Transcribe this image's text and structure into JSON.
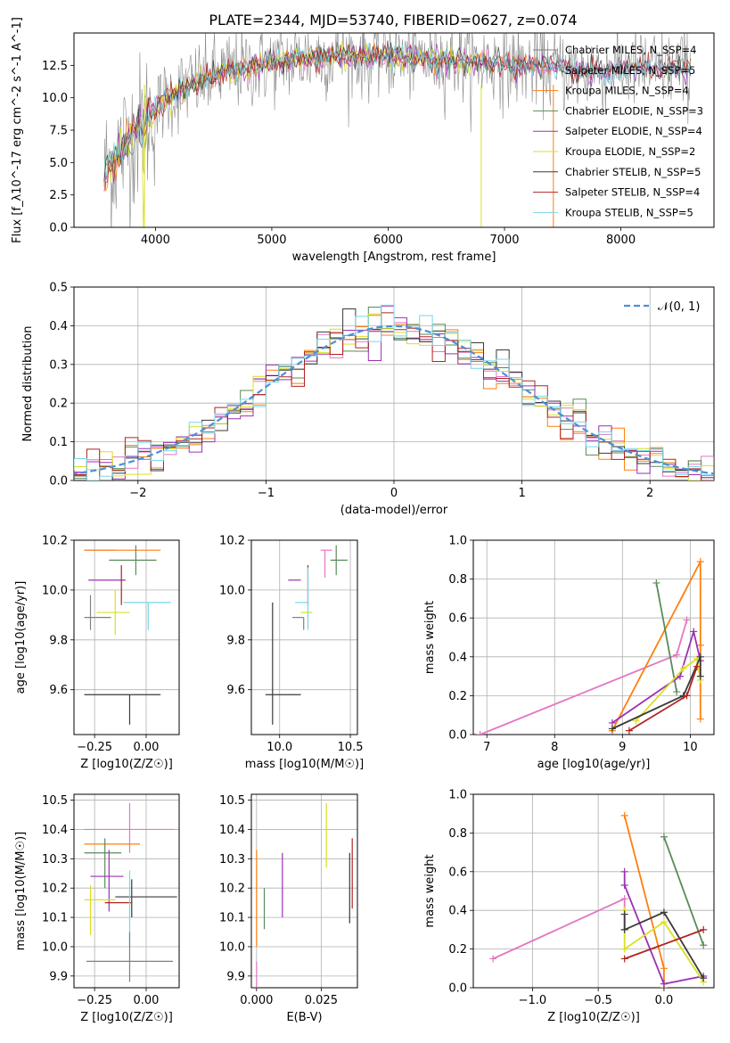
{
  "figure": {
    "title": "PLATE=2344, MJD=53740, FIBERID=0627, z=0.074"
  },
  "colors": {
    "series": [
      "#808080",
      "#e377c2",
      "#ff7f0e",
      "#5a8a5a",
      "#9b30b5",
      "#d9e021",
      "#3a3a3a",
      "#b22222",
      "#76d7ea"
    ]
  },
  "chart_data": [
    {
      "id": "spectrum",
      "type": "line",
      "xlabel": "wavelength [Angstrom, rest frame]",
      "ylabel": "Flux [f_λ10^-17 erg cm^-2 s^-1 A^-1]",
      "xlim": [
        3300,
        8800
      ],
      "ylim": [
        0,
        15
      ],
      "xticks": [
        4000,
        5000,
        6000,
        7000,
        8000
      ],
      "yticks": [
        0.0,
        2.5,
        5.0,
        7.5,
        10.0,
        12.5
      ],
      "legend_position": "right",
      "legend": [
        "Chabrier MILES, N_SSP=4",
        "Salpeter MILES, N_SSP=5",
        "Kroupa MILES, N_SSP=4",
        "Chabrier ELODIE, N_SSP=3",
        "Salpeter ELODIE, N_SSP=4",
        "Kroupa ELODIE, N_SSP=2",
        "Chabrier STELIB, N_SSP=5",
        "Salpeter STELIB, N_SSP=4",
        "Kroupa STELIB, N_SSP=5"
      ],
      "data_envelope": {
        "x": [
          3560,
          3700,
          3850,
          3950,
          4100,
          4300,
          4600,
          4900,
          5200,
          5600,
          6000,
          6400,
          6800,
          7200,
          7400,
          7700,
          8000,
          8300,
          8600
        ],
        "y": [
          4.0,
          6.0,
          7.5,
          8.5,
          10.0,
          11.0,
          12.0,
          12.5,
          13.0,
          13.3,
          13.2,
          13.0,
          12.7,
          12.5,
          12.3,
          12.0,
          12.2,
          12.3,
          12.2
        ]
      },
      "grid": false
    },
    {
      "id": "residuals",
      "type": "histogram",
      "xlabel": "(data-model)/error",
      "ylabel": "Normed distribution",
      "xlim": [
        -2.5,
        2.5
      ],
      "ylim": [
        0,
        0.5
      ],
      "xticks": [
        -2,
        -1,
        0,
        1,
        2
      ],
      "yticks": [
        0.0,
        0.1,
        0.2,
        0.3,
        0.4,
        0.5
      ],
      "legend": [
        "𝒩(0, 1)"
      ],
      "legend_position": "top-right",
      "grid": true,
      "bin_width": 0.1,
      "reference_curve": "normal(0,1)"
    },
    {
      "id": "age-vs-Z",
      "type": "errorbar",
      "xlabel": "Z [log10(Z/Z☉)]",
      "ylabel": "age  [log10(age/yr)]",
      "xlim": [
        -0.35,
        0.16
      ],
      "ylim": [
        9.42,
        10.2
      ],
      "xticks": [
        -0.25,
        0.0
      ],
      "yticks": [
        9.6,
        9.8,
        10.0,
        10.2
      ],
      "grid": true,
      "points": [
        {
          "x": -0.21,
          "y": 10.16,
          "xerr": [
            0.09,
            0.06
          ],
          "yerr": [
            0.0,
            0.0
          ]
        },
        {
          "x": -0.11,
          "y": 10.16,
          "xerr": [
            0.19,
            0.18
          ],
          "yerr": [
            0.0,
            0.0
          ]
        },
        {
          "x": -0.05,
          "y": 10.12,
          "xerr": [
            0.13,
            0.1
          ],
          "yerr": [
            0.06,
            0.06
          ]
        },
        {
          "x": -0.19,
          "y": 10.04,
          "xerr": [
            0.09,
            0.09
          ],
          "yerr": [
            0.0,
            0.0
          ]
        },
        {
          "x": -0.15,
          "y": 9.91,
          "xerr": [
            0.09,
            0.07
          ],
          "yerr": [
            0.09,
            0.09
          ]
        },
        {
          "x": -0.08,
          "y": 9.58,
          "xerr": [
            0.22,
            0.15
          ],
          "yerr": [
            0.12,
            0.0
          ]
        },
        {
          "x": -0.12,
          "y": 10.04,
          "xerr": [
            0.0,
            0.0
          ],
          "yerr": [
            0.1,
            0.06
          ]
        },
        {
          "x": 0.01,
          "y": 9.95,
          "xerr": [
            0.12,
            0.11
          ],
          "yerr": [
            0.11,
            0.0
          ]
        },
        {
          "x": -0.27,
          "y": 9.89,
          "xerr": [
            0.03,
            0.1
          ],
          "yerr": [
            0.05,
            0.09
          ]
        }
      ]
    },
    {
      "id": "age-vs-mass",
      "type": "errorbar",
      "xlabel": "mass [log10(M/M☉)]",
      "ylabel": "",
      "xlim": [
        9.8,
        10.55
      ],
      "ylim": [
        9.42,
        10.2
      ],
      "xticks": [
        10.0,
        10.5
      ],
      "yticks": [
        9.6,
        9.8,
        10.0,
        10.2
      ],
      "grid": true,
      "points": [
        {
          "x": 10.32,
          "y": 10.16,
          "yerr": [
            0.11,
            0.0
          ],
          "xerr": [
            0.03,
            0.05
          ]
        },
        {
          "x": 10.35,
          "y": 10.16,
          "yerr": [
            0.0,
            0.0
          ],
          "xerr": [
            0.0,
            0.0
          ]
        },
        {
          "x": 10.4,
          "y": 10.12,
          "xerr": [
            0.04,
            0.08
          ],
          "yerr": [
            0.06,
            0.06
          ]
        },
        {
          "x": 10.15,
          "y": 10.04,
          "xerr": [
            0.09,
            0.0
          ],
          "yerr": [
            0.0,
            0.0
          ]
        },
        {
          "x": 10.23,
          "y": 9.91,
          "xerr": [
            0.08,
            0.0
          ],
          "yerr": [
            0.0,
            0.0
          ]
        },
        {
          "x": 9.95,
          "y": 9.58,
          "xerr": [
            0.05,
            0.2
          ],
          "yerr": [
            0.12,
            0.37
          ]
        },
        {
          "x": 10.2,
          "y": 10.04,
          "yerr": [
            0.1,
            0.06
          ],
          "xerr": [
            0.0,
            0.0
          ]
        },
        {
          "x": 10.2,
          "y": 9.95,
          "xerr": [
            0.09,
            0.0
          ],
          "yerr": [
            0.11,
            0.14
          ]
        },
        {
          "x": 10.17,
          "y": 9.89,
          "xerr": [
            0.08,
            0.0
          ],
          "yerr": [
            0.05,
            0.0
          ]
        }
      ]
    },
    {
      "id": "weight-vs-age",
      "type": "line",
      "xlabel": "age  [log10(age/yr)]",
      "ylabel": "mass weight",
      "xlim": [
        6.8,
        10.35
      ],
      "ylim": [
        0,
        1
      ],
      "xticks": [
        7,
        8,
        9,
        10
      ],
      "yticks": [
        0.0,
        0.2,
        0.4,
        0.6,
        0.8,
        1.0
      ],
      "grid": true,
      "series": [
        {
          "x": [
            6.9,
            9.8,
            9.95
          ],
          "y": [
            0.0,
            0.41,
            0.59
          ]
        },
        {
          "x": [
            8.85,
            10.15,
            10.15,
            10.15
          ],
          "y": [
            0.02,
            0.89,
            0.46,
            0.08
          ]
        },
        {
          "x": [
            9.5,
            9.8
          ],
          "y": [
            0.78,
            0.22
          ]
        },
        {
          "x": [
            8.85,
            9.85,
            10.05,
            10.15
          ],
          "y": [
            0.06,
            0.3,
            0.53,
            0.38
          ]
        },
        {
          "x": [
            9.2,
            9.9,
            10.1,
            10.15
          ],
          "y": [
            0.07,
            0.34,
            0.39,
            0.28
          ]
        },
        {
          "x": [
            8.85,
            9.9,
            10.15,
            10.15
          ],
          "y": [
            0.03,
            0.2,
            0.4,
            0.3
          ]
        },
        {
          "x": [
            9.1,
            9.95,
            10.1
          ],
          "y": [
            0.02,
            0.2,
            0.35
          ]
        }
      ]
    },
    {
      "id": "mass-vs-Z",
      "type": "errorbar",
      "xlabel": "Z [log10(Z/Z☉)]",
      "ylabel": "mass [log10(M/M☉)]",
      "xlim": [
        -0.35,
        0.16
      ],
      "ylim": [
        9.86,
        10.52
      ],
      "xticks": [
        -0.25,
        0.0
      ],
      "yticks": [
        9.9,
        10.0,
        10.1,
        10.2,
        10.3,
        10.4,
        10.5
      ],
      "grid": true,
      "points": [
        {
          "x": -0.08,
          "y": 10.4,
          "xerr": [
            0.22,
            0.22
          ],
          "yerr": [
            0.08,
            0.09
          ]
        },
        {
          "x": -0.15,
          "y": 10.35,
          "xerr": [
            0.15,
            0.12
          ],
          "yerr": [
            0.0,
            0.0
          ]
        },
        {
          "x": -0.2,
          "y": 10.32,
          "xerr": [
            0.1,
            0.08
          ],
          "yerr": [
            0.12,
            0.05
          ]
        },
        {
          "x": -0.18,
          "y": 10.24,
          "xerr": [
            0.09,
            0.07
          ],
          "yerr": [
            0.12,
            0.09
          ]
        },
        {
          "x": -0.27,
          "y": 10.16,
          "xerr": [
            0.03,
            0.12
          ],
          "yerr": [
            0.12,
            0.05
          ]
        },
        {
          "x": -0.07,
          "y": 10.17,
          "xerr": [
            0.08,
            0.22
          ],
          "yerr": [
            0.07,
            0.06
          ]
        },
        {
          "x": -0.13,
          "y": 10.15,
          "xerr": [
            0.07,
            0.06
          ],
          "yerr": [
            0.0,
            0.0
          ]
        },
        {
          "x": -0.08,
          "y": 10.0,
          "xerr": [
            0.0,
            0.0
          ],
          "yerr": [
            0.0,
            0.26
          ]
        },
        {
          "x": -0.08,
          "y": 9.95,
          "xerr": [
            0.21,
            0.21
          ],
          "yerr": [
            0.07,
            0.1
          ]
        }
      ]
    },
    {
      "id": "mass-vs-EBV",
      "type": "errorbar",
      "xlabel": "E(B-V)",
      "ylabel": "",
      "xlim": [
        -0.002,
        0.039
      ],
      "ylim": [
        9.86,
        10.52
      ],
      "xticks": [
        0.0,
        0.025
      ],
      "yticks": [
        9.9,
        10.0,
        10.1,
        10.2,
        10.3,
        10.4,
        10.5
      ],
      "grid": true,
      "points": [
        {
          "x": 0.0,
          "y": 9.95,
          "yerr": [
            0.1,
            0.0
          ]
        },
        {
          "x": 0.0,
          "y": 10.15,
          "yerr": [
            0.15,
            0.18
          ]
        },
        {
          "x": 0.003,
          "y": 10.13,
          "yerr": [
            0.07,
            0.07
          ]
        },
        {
          "x": 0.01,
          "y": 10.21,
          "yerr": [
            0.11,
            0.11
          ]
        },
        {
          "x": 0.027,
          "y": 10.38,
          "yerr": [
            0.11,
            0.11
          ]
        },
        {
          "x": 0.036,
          "y": 10.2,
          "yerr": [
            0.12,
            0.12
          ]
        },
        {
          "x": 0.037,
          "y": 10.25,
          "yerr": [
            0.12,
            0.12
          ]
        }
      ]
    },
    {
      "id": "weight-vs-Z",
      "type": "line",
      "xlabel": "Z [log10(Z/Z☉)]",
      "ylabel": "mass weight",
      "xlim": [
        -1.45,
        0.38
      ],
      "ylim": [
        0,
        1
      ],
      "xticks": [
        -1.0,
        -0.5,
        0.0
      ],
      "yticks": [
        0.0,
        0.2,
        0.4,
        0.6,
        0.8,
        1.0
      ],
      "grid": true,
      "series": [
        {
          "x": [
            -1.3,
            -0.3,
            -0.3
          ],
          "y": [
            0.15,
            0.46,
            0.3
          ]
        },
        {
          "x": [
            -0.3,
            0.0,
            0.0
          ],
          "y": [
            0.89,
            0.1,
            0.0
          ]
        },
        {
          "x": [
            0.0,
            0.3
          ],
          "y": [
            0.78,
            0.22
          ]
        },
        {
          "x": [
            -0.3,
            -0.3,
            0.0,
            0.3
          ],
          "y": [
            0.6,
            0.53,
            0.02,
            0.06
          ]
        },
        {
          "x": [
            -0.3,
            -0.3,
            0.0,
            0.3
          ],
          "y": [
            0.4,
            0.2,
            0.34,
            0.03
          ]
        },
        {
          "x": [
            -0.3,
            -0.3,
            0.0,
            0.3
          ],
          "y": [
            0.38,
            0.3,
            0.39,
            0.05
          ]
        },
        {
          "x": [
            -0.3,
            0.3
          ],
          "y": [
            0.15,
            0.3
          ]
        }
      ]
    }
  ]
}
